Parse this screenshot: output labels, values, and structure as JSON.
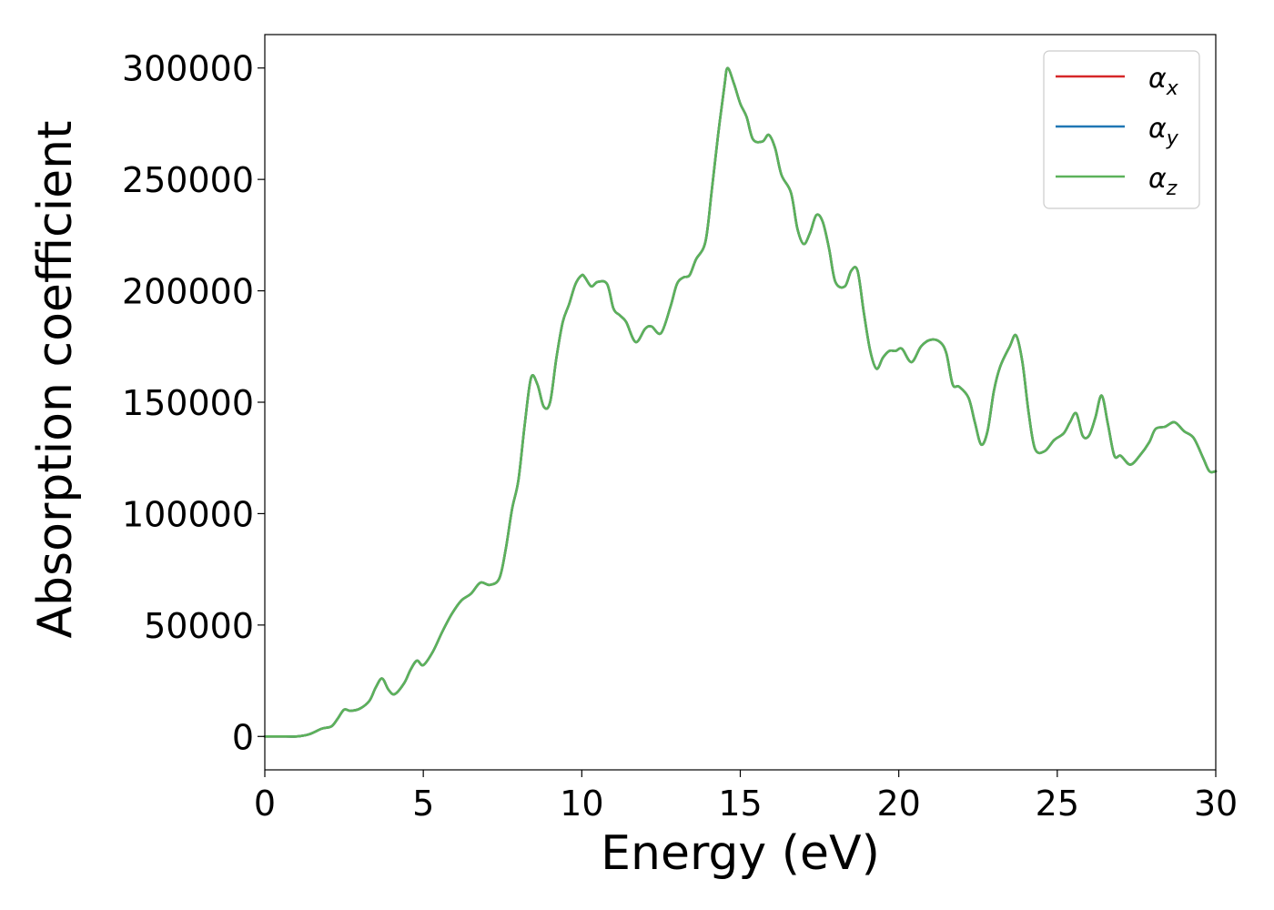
{
  "chart_data": {
    "type": "line",
    "title": "",
    "xlabel": "Energy (eV)",
    "ylabel": "Absorption coefficient",
    "xlim": [
      0,
      30
    ],
    "ylim": [
      -15000,
      315000
    ],
    "xticks": [
      0,
      5,
      10,
      15,
      20,
      25,
      30
    ],
    "yticks": [
      0,
      50000,
      100000,
      150000,
      200000,
      250000,
      300000
    ],
    "xtick_labels": [
      "0",
      "5",
      "10",
      "15",
      "20",
      "25",
      "30"
    ],
    "ytick_labels": [
      "0",
      "50000",
      "100000",
      "150000",
      "200000",
      "250000",
      "300000"
    ],
    "grid": false,
    "legend_position": "top-right",
    "legend": [
      "αx",
      "αy",
      "αz"
    ],
    "series": [
      {
        "name": "αx",
        "color": "#d62728",
        "x": [
          0,
          0.5,
          1.0,
          1.4,
          1.8,
          2.1,
          2.3,
          2.5,
          2.7,
          3.0,
          3.3,
          3.5,
          3.7,
          3.9,
          4.1,
          4.4,
          4.6,
          4.8,
          5.0,
          5.3,
          5.6,
          5.9,
          6.2,
          6.5,
          6.8,
          7.1,
          7.4,
          7.6,
          7.8,
          8.0,
          8.2,
          8.4,
          8.6,
          8.8,
          9.0,
          9.2,
          9.4,
          9.6,
          9.8,
          10.0,
          10.1,
          10.3,
          10.5,
          10.8,
          11.0,
          11.2,
          11.4,
          11.7,
          12.0,
          12.2,
          12.5,
          12.8,
          13.0,
          13.2,
          13.4,
          13.6,
          13.9,
          14.1,
          14.3,
          14.5,
          14.6,
          14.8,
          15.0,
          15.2,
          15.4,
          15.7,
          15.9,
          16.1,
          16.3,
          16.6,
          16.8,
          17.0,
          17.2,
          17.4,
          17.6,
          17.8,
          18.0,
          18.3,
          18.5,
          18.7,
          18.9,
          19.1,
          19.3,
          19.5,
          19.7,
          19.9,
          20.1,
          20.4,
          20.7,
          21.0,
          21.3,
          21.5,
          21.7,
          21.9,
          22.2,
          22.4,
          22.6,
          22.8,
          23.0,
          23.2,
          23.5,
          23.7,
          23.9,
          24.1,
          24.3,
          24.6,
          24.9,
          25.2,
          25.4,
          25.6,
          25.8,
          26.0,
          26.2,
          26.4,
          26.6,
          26.8,
          27.0,
          27.3,
          27.6,
          27.9,
          28.1,
          28.4,
          28.7,
          29.0,
          29.3,
          29.6,
          29.8,
          30.0
        ],
        "y": [
          0,
          0,
          0,
          1000,
          3500,
          4500,
          8000,
          12000,
          11500,
          12500,
          16000,
          22000,
          26000,
          21000,
          19000,
          24000,
          30000,
          34000,
          32000,
          38000,
          47000,
          55000,
          61000,
          64000,
          69000,
          68000,
          71000,
          84000,
          102000,
          115000,
          140000,
          161000,
          158000,
          148000,
          150000,
          170000,
          186000,
          194000,
          203000,
          207000,
          206000,
          202000,
          204000,
          203000,
          192000,
          189000,
          186000,
          177000,
          183000,
          184000,
          181000,
          193000,
          203000,
          206000,
          207000,
          214000,
          222000,
          245000,
          270000,
          292000,
          300000,
          293000,
          284000,
          278000,
          268000,
          267000,
          270000,
          264000,
          252000,
          244000,
          228000,
          221000,
          226000,
          234000,
          231000,
          219000,
          204000,
          202000,
          209000,
          209000,
          190000,
          173000,
          165000,
          170000,
          173000,
          173000,
          174000,
          168000,
          175000,
          178000,
          177000,
          172000,
          158000,
          157000,
          152000,
          141000,
          131000,
          137000,
          155000,
          166000,
          175000,
          180000,
          168000,
          145000,
          129000,
          128000,
          133000,
          136000,
          141000,
          145000,
          135000,
          135000,
          143000,
          153000,
          140000,
          126000,
          126000,
          122000,
          126000,
          132000,
          138000,
          139000,
          141000,
          137000,
          134000,
          125000,
          119000,
          119000
        ]
      },
      {
        "name": "αy",
        "color": "#1f77b4",
        "same_as": "αx"
      },
      {
        "name": "αz",
        "color": "#5cb25a",
        "same_as": "αx"
      }
    ]
  }
}
